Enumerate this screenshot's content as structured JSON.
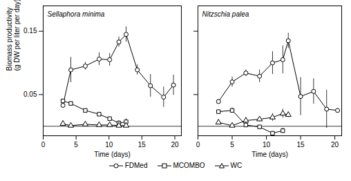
{
  "chart_data": [
    {
      "type": "line",
      "title": "Sellaphora minima",
      "y_label": "Biomass productivity\n(g DW per liter per day)",
      "x_label": "Time (days)",
      "xlim": [
        0,
        21
      ],
      "xticks": [
        0,
        5,
        10,
        15,
        20
      ],
      "ylim": [
        -0.015,
        0.19
      ],
      "yticks": [
        0.05,
        0.15
      ],
      "hlines": [
        0
      ],
      "legend": "bottom",
      "series": [
        {
          "name": "FDMed",
          "color": "#000000",
          "marker": "circle",
          "x": [
            3,
            4.2,
            6.4,
            8.5,
            10.1,
            11.5,
            12.6,
            14.3,
            16.3,
            18.3,
            19.8
          ],
          "values": [
            0.033,
            0.089,
            0.095,
            0.106,
            0.105,
            0.133,
            0.145,
            0.089,
            0.064,
            0.046,
            0.065
          ],
          "errors": [
            0.003,
            0.02,
            0.006,
            0.01,
            0.01,
            0.008,
            0.012,
            0.008,
            0.018,
            0.016,
            0.016
          ]
        },
        {
          "name": "MCOMBO",
          "color": "#000000",
          "marker": "square",
          "x": [
            3,
            4.2,
            6.4,
            8.5,
            10.1,
            11.5,
            12.6
          ],
          "values": [
            0.04,
            0.036,
            0.025,
            0.019,
            0.012,
            0.005,
            0.007
          ],
          "errors": [
            0.002,
            0.002,
            0.002,
            0.002,
            0.002,
            0.004,
            0.005
          ]
        },
        {
          "name": "WC",
          "color": "#000000",
          "marker": "triangle",
          "x": [
            3,
            4.2,
            6.4,
            8.5,
            10.1,
            11.5,
            12.6
          ],
          "values": [
            0.004,
            0.001,
            0.003,
            0.002,
            0.002,
            0.001,
            0.001
          ],
          "errors": [
            0.001,
            0.001,
            0.001,
            0.001,
            0.001,
            0.001,
            0.001
          ]
        }
      ]
    },
    {
      "type": "line",
      "title": "Nitzschia palea",
      "x_label": "Time (days)",
      "xlim": [
        0,
        21
      ],
      "xticks": [
        0,
        5,
        10,
        15,
        20
      ],
      "ylim": [
        -0.015,
        0.19
      ],
      "yticks": [
        0.05,
        0.15
      ],
      "hlines": [
        0
      ],
      "tick_labels": "x",
      "series": [
        {
          "name": "FDMed",
          "color": "#000000",
          "marker": "circle",
          "x": [
            3,
            5,
            7,
            9,
            10.9,
            12.4,
            13.2,
            15,
            16.9,
            18.8,
            20.4
          ],
          "values": [
            0.039,
            0.07,
            0.084,
            0.079,
            0.1,
            0.105,
            0.135,
            0.047,
            0.055,
            0.027,
            0.025
          ],
          "errors": [
            0.003,
            0.008,
            0.005,
            0.01,
            0.018,
            0.022,
            0.012,
            0.03,
            0.02,
            0.03,
            0.002
          ]
        },
        {
          "name": "MCOMBO",
          "color": "#000000",
          "marker": "square",
          "x": [
            3,
            5,
            7,
            9,
            10.9,
            12.4
          ],
          "values": [
            0.023,
            0.025,
            0.002,
            -0.001,
            -0.011,
            -0.007
          ],
          "errors": [
            0.002,
            0.004,
            0.002,
            0.002,
            0.003,
            0.004
          ]
        },
        {
          "name": "WC",
          "color": "#000000",
          "marker": "triangle",
          "x": [
            3,
            5,
            7,
            9,
            10.9,
            12.4,
            13.2
          ],
          "values": [
            0.006,
            0.001,
            0.009,
            0.011,
            0.014,
            0.02,
            0.018
          ],
          "errors": [
            0.003,
            0.003,
            0.005,
            0.004,
            0.006,
            0.007,
            0.004
          ]
        }
      ]
    }
  ]
}
